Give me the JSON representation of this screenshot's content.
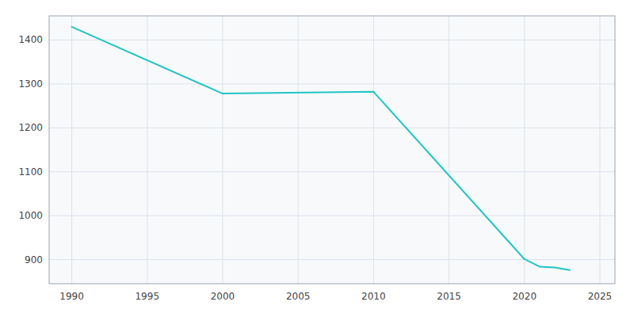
{
  "chart_data": {
    "type": "line",
    "x": [
      1990,
      2000,
      2010,
      2020,
      2021,
      2022,
      2023
    ],
    "values": [
      1430,
      1278,
      1282,
      901,
      884,
      882,
      876
    ],
    "color": "#22c4c4",
    "xlim": [
      1988.5,
      2026
    ],
    "ylim": [
      845,
      1455
    ],
    "xticks": [
      1990,
      1995,
      2000,
      2005,
      2010,
      2015,
      2020,
      2025
    ],
    "yticks": [
      900,
      1000,
      1100,
      1200,
      1300,
      1400
    ],
    "grid": true
  }
}
